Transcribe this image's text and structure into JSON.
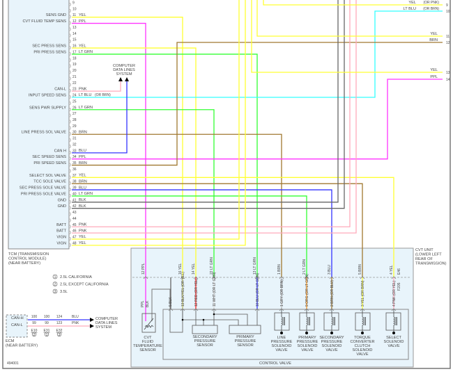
{
  "colors": {
    "YEL": "#ffff33",
    "PPL": "#ff33ff",
    "LT GRN": "#33ff33",
    "PNK": "#ffaabb",
    "LT BLU": "#33ffff",
    "BRN": "#a07830",
    "BLU": "#3333ff",
    "BLK": "#666666",
    "RED": "#ff2222",
    "WHT": "#dddddd",
    "GRY": "#bbbbbb",
    "ORG": "#ff9922",
    "BLKYEL": "#bbbb66",
    "panel": "#e8f4fb"
  },
  "tcm": {
    "title": [
      "TCM (TRANSMISSION",
      "CONTROL MODULE)",
      "(NEAR BATTERY)"
    ],
    "pins": [
      {
        "num": "9",
        "func": "",
        "wire": ""
      },
      {
        "num": "10",
        "func": "",
        "wire": ""
      },
      {
        "num": "11",
        "func": "SENS GND",
        "wire": "YEL"
      },
      {
        "num": "12",
        "func": "CVT FLUID TEMP SENS",
        "wire": "PPL"
      },
      {
        "num": "13",
        "func": "",
        "wire": ""
      },
      {
        "num": "14",
        "func": "",
        "wire": ""
      },
      {
        "num": "15",
        "func": "",
        "wire": ""
      },
      {
        "num": "16",
        "func": "SEC PRESS SENS",
        "wire": "YEL"
      },
      {
        "num": "17",
        "func": "PRI PRESS SENS",
        "wire": "LT GRN"
      },
      {
        "num": "18",
        "func": "",
        "wire": ""
      },
      {
        "num": "19",
        "func": "",
        "wire": ""
      },
      {
        "num": "20",
        "func": "",
        "wire": ""
      },
      {
        "num": "21",
        "func": "",
        "wire": ""
      },
      {
        "num": "22",
        "func": "",
        "wire": ""
      },
      {
        "num": "23",
        "func": "CAN-L",
        "wire": "PNK"
      },
      {
        "num": "24",
        "func": "INPUT SPEED SENS",
        "wire": "LT BLU",
        "alt": "(OR BRN)"
      },
      {
        "num": "25",
        "func": "",
        "wire": ""
      },
      {
        "num": "26",
        "func": "SENS PWR SUPPLY",
        "wire": "LT GRN"
      },
      {
        "num": "27",
        "func": "",
        "wire": ""
      },
      {
        "num": "28",
        "func": "",
        "wire": ""
      },
      {
        "num": "29",
        "func": "",
        "wire": ""
      },
      {
        "num": "30",
        "func": "LINE PRESS SOL VALVE",
        "wire": "BRN"
      },
      {
        "num": "31",
        "func": "",
        "wire": ""
      },
      {
        "num": "32",
        "func": "",
        "wire": ""
      },
      {
        "num": "33",
        "func": "CAN H",
        "wire": "BLU"
      },
      {
        "num": "34",
        "func": "SEC SPEED SENS",
        "wire": "PPL"
      },
      {
        "num": "35",
        "func": "PRI SPEED SENS",
        "wire": "BRN"
      },
      {
        "num": "36",
        "func": "",
        "wire": ""
      },
      {
        "num": "37",
        "func": "SELECT SOL VALVE",
        "wire": "YEL"
      },
      {
        "num": "38",
        "func": "TCC SOLE VALVE",
        "wire": "BRN"
      },
      {
        "num": "39",
        "func": "SEC PRESS SOLE VALVE",
        "wire": "BLU"
      },
      {
        "num": "40",
        "func": "PRI PRESS SOLE VALVE",
        "wire": "LT GRN"
      },
      {
        "num": "41",
        "func": "GND",
        "wire": "BLK"
      },
      {
        "num": "42",
        "func": "GND",
        "wire": "BLK"
      },
      {
        "num": "43",
        "func": "",
        "wire": ""
      },
      {
        "num": "44",
        "func": "",
        "wire": ""
      },
      {
        "num": "45",
        "func": "BATT",
        "wire": "PNK"
      },
      {
        "num": "46",
        "func": "BATT",
        "wire": "PNK"
      },
      {
        "num": "47",
        "func": "VIGN",
        "wire": "YEL"
      },
      {
        "num": "48",
        "func": "VIGN",
        "wire": "YEL"
      }
    ]
  },
  "computer_data_lines": [
    "COMPUTER",
    "DATA LINES",
    "SYSTEM"
  ],
  "right_pins": [
    {
      "num": "9",
      "wire": "YEL",
      "alt": "(OR PNK)"
    },
    {
      "num": "10",
      "wire": "LT BLU",
      "alt": "(OR BRN)"
    },
    {
      "num": "11",
      "wire": "YEL",
      "alt": ""
    },
    {
      "num": "12",
      "wire": "BRN",
      "alt": ""
    },
    {
      "num": "13",
      "wire": "YEL",
      "alt": ""
    },
    {
      "num": "14",
      "wire": "PPL",
      "alt": ""
    }
  ],
  "cvt_unit": {
    "title": [
      "CVT UNIT",
      "(LOWER LEFT",
      "REAR OF",
      "TRANSMISSION)"
    ],
    "connector_upper": "E46",
    "connector_lower": "F205",
    "upper_pins": [
      {
        "label": "12 PPL",
        "wire": "PPL"
      },
      {
        "label": "16 YEL",
        "wire": "YEL"
      },
      {
        "label": "14 YEL",
        "wire": "YEL"
      },
      {
        "label": "22 LT GRN",
        "wire": "LT GRN"
      },
      {
        "label": "13 LT GRN",
        "wire": "LT GRN"
      },
      {
        "label": "1 BRN",
        "wire": "BRN"
      },
      {
        "label": "2 LT GRN",
        "wire": "LT GRN"
      },
      {
        "label": "3 BLU",
        "wire": "BLU"
      },
      {
        "label": "5 BRN",
        "wire": "BRN"
      },
      {
        "label": "4 YEL",
        "wire": "YEL"
      }
    ],
    "lower_pins": [
      {
        "label": "PPL",
        "pin": "",
        "wire": "PPL"
      },
      {
        "label": "BLK",
        "pin": "",
        "wire": "BLK"
      },
      {
        "label": "BLK",
        "pin": "5",
        "wire": "BLK"
      },
      {
        "label": "BLK/YEL (OR YEL)",
        "pin": "13",
        "wire": "BLKYEL"
      },
      {
        "label": "RED (OR YEL)",
        "pin": "12",
        "wire": "RED"
      },
      {
        "label": "WHT (OR LT GRN)",
        "pin": "11",
        "wire": "WHT"
      },
      {
        "label": "BLU (OR LT GRN)",
        "pin": "10",
        "wire": "BLU"
      },
      {
        "label": "GRY (OR BRN)",
        "pin": "1",
        "wire": "GRY"
      },
      {
        "label": "ORG (OR LT GRN)",
        "pin": "9",
        "wire": "ORG"
      },
      {
        "label": "BRN (OR BLU)",
        "pin": "2",
        "wire": "BRN"
      },
      {
        "label": "YEL (OR BRN)",
        "pin": "3",
        "wire": "YEL"
      },
      {
        "label": "PNK (OR YEL)",
        "pin": "4",
        "wire": "PNK"
      }
    ],
    "components": [
      [
        "CVT",
        "FLUID",
        "TEMPERATURE",
        "SENSOR"
      ],
      [
        "SECONDARY",
        "PRESSURE",
        "SENSOR"
      ],
      [
        "PRIMARY",
        "PRESSURE",
        "SENSOR"
      ],
      [
        "LINE",
        "PRESSURE",
        "SOLENOID",
        "VALVE"
      ],
      [
        "PRIMARY",
        "PRESSURE",
        "SOLENOID",
        "VALVE"
      ],
      [
        "SECONDARY",
        "PRESSURE",
        "SOLENOID",
        "VALVE"
      ],
      [
        "TORQUE",
        "CONVERTER",
        "CLUTCH",
        "SOLENOID",
        "VALVE"
      ],
      [
        "SELECT",
        "SOLENOID",
        "VALVE"
      ]
    ],
    "control_valve": "CONTROL VALVE"
  },
  "legend": [
    {
      "mark": "1",
      "text": "2.5L CALIFORNIA"
    },
    {
      "mark": "2",
      "text": "2.5L EXCEPT CALIFORNIA"
    },
    {
      "mark": "3",
      "text": "3.5L"
    }
  ],
  "ecm": {
    "title": [
      "ECM",
      "(NEAR BATTERY)"
    ],
    "can_h": "CAN-H",
    "can_l": "CAN-L",
    "can_h_pins": [
      "100",
      "100",
      "124"
    ],
    "can_h_wire": "BLU",
    "can_l_pins": [
      "99",
      "99",
      "123"
    ],
    "can_l_wire": "PNK",
    "connectors": [
      {
        "id": "E10",
        "mark": "2"
      },
      {
        "id": "E31",
        "mark": "1"
      },
      {
        "id": "E32",
        "mark": "3"
      }
    ],
    "target": [
      "COMPUTER",
      "DATA LINES",
      "SYSTEM"
    ]
  },
  "figure_id": "494001"
}
